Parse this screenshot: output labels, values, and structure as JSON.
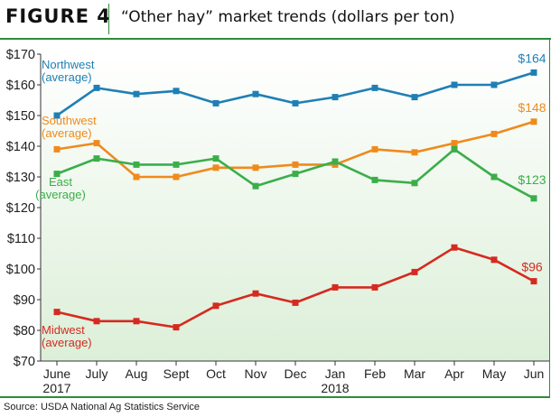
{
  "header": {
    "figure_label": "FIGURE 4",
    "title": "“Other hay” market trends (dollars per ton)"
  },
  "source": "Source: USDA National Ag Statistics Service",
  "colors": {
    "accent_green": "#2e8b3a",
    "northwest": "#1f7fb5",
    "southwest": "#f08a1c",
    "east": "#3aae4a",
    "midwest": "#d62a20"
  },
  "chart_data": {
    "type": "line",
    "title": "“Other hay” market trends (dollars per ton)",
    "ylim": [
      70,
      170
    ],
    "y_ticks": [
      "$70",
      "$80",
      "$90",
      "$100",
      "$110",
      "$120",
      "$130",
      "$140",
      "$150",
      "$160",
      "$170"
    ],
    "y_tick_values": [
      70,
      80,
      90,
      100,
      110,
      120,
      130,
      140,
      150,
      160,
      170
    ],
    "categories": [
      "June",
      "July",
      "Aug",
      "Sept",
      "Oct",
      "Nov",
      "Dec",
      "Jan",
      "Feb",
      "Mar",
      "Apr",
      "May",
      "Jun"
    ],
    "year_labels": [
      {
        "index": 0,
        "label": "2017"
      },
      {
        "index": 7,
        "label": "2018"
      }
    ],
    "grid": false,
    "series": [
      {
        "key": "northwest",
        "name": "Northwest (average)",
        "label_lines": [
          "Northwest",
          "(average)"
        ],
        "end_label": "$164",
        "values": [
          150,
          159,
          157,
          158,
          154,
          157,
          154,
          156,
          159,
          156,
          160,
          160,
          164
        ]
      },
      {
        "key": "southwest",
        "name": "Southwest (average)",
        "label_lines": [
          "Southwest",
          "(average)"
        ],
        "end_label": "$148",
        "values": [
          139,
          141,
          130,
          130,
          133,
          133,
          134,
          134,
          139,
          138,
          141,
          144,
          148
        ]
      },
      {
        "key": "east",
        "name": "East (average)",
        "label_lines": [
          "East",
          "(average)"
        ],
        "end_label": "$123",
        "values": [
          131,
          136,
          134,
          134,
          136,
          127,
          131,
          135,
          129,
          128,
          139,
          130,
          123
        ]
      },
      {
        "key": "midwest",
        "name": "Midwest (average)",
        "label_lines": [
          "Midwest",
          "(average)"
        ],
        "end_label": "$96",
        "values": [
          86,
          83,
          83,
          81,
          88,
          92,
          89,
          94,
          94,
          99,
          107,
          103,
          96
        ]
      }
    ]
  }
}
